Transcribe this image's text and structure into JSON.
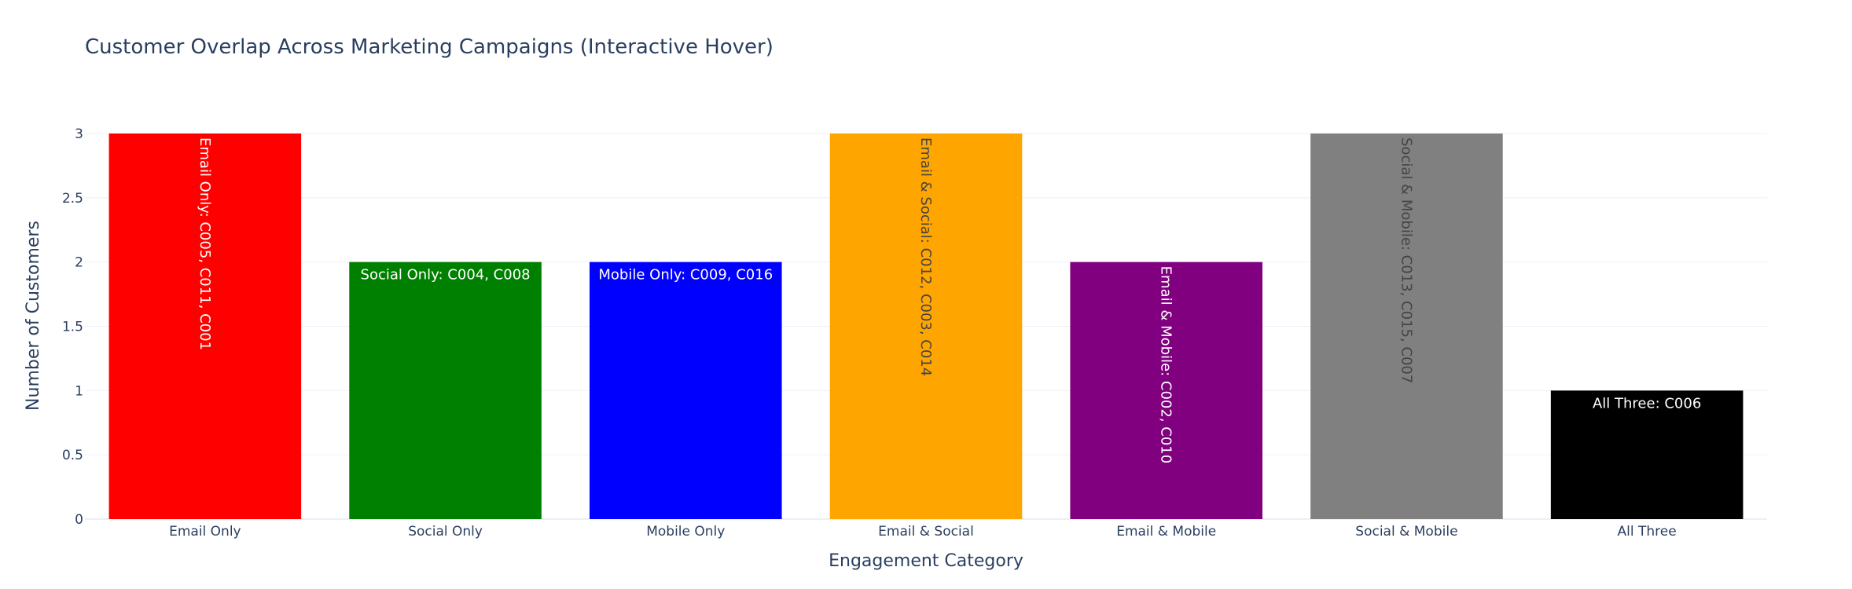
{
  "chart_data": {
    "type": "bar",
    "title": "Customer Overlap Across Marketing Campaigns (Interactive Hover)",
    "xlabel": "Engagement Category",
    "ylabel": "Number of Customers",
    "ylim": [
      0,
      3
    ],
    "yticks": [
      "0",
      "0.5",
      "1",
      "1.5",
      "2",
      "2.5",
      "3"
    ],
    "grid": true,
    "categories": [
      "Email Only",
      "Social Only",
      "Mobile Only",
      "Email & Social",
      "Email & Mobile",
      "Social & Mobile",
      "All Three"
    ],
    "values": [
      3,
      2,
      2,
      3,
      2,
      3,
      1
    ],
    "colors": [
      "#ff0000",
      "#008000",
      "#0000ff",
      "#ffa500",
      "#800080",
      "#808080",
      "#000000"
    ],
    "labels": [
      "Email Only: C005, C011, C001",
      "Social Only: C004, C008",
      "Mobile Only: C009, C016",
      "Email & Social: C012, C003, C014",
      "Email & Mobile: C002, C010",
      "Social & Mobile: C013, C015, C007",
      "All Three: C006"
    ],
    "label_colors": [
      "#ffffff",
      "#ffffff",
      "#ffffff",
      "#444444",
      "#ffffff",
      "#444444",
      "#ffffff"
    ]
  }
}
